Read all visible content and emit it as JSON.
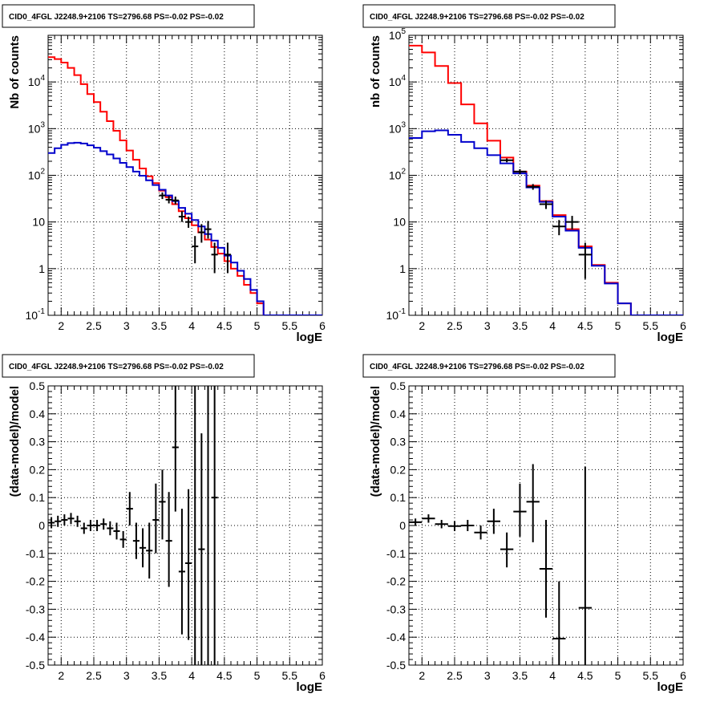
{
  "chart_data": [
    {
      "type": "line",
      "title": "CID0_4FGL J2248.9+2106 TS=2796.68 PS=-0.02 PS=-0.02",
      "xlabel": "logE",
      "ylabel": "Nb of counts",
      "xlim": [
        1.8,
        6.0
      ],
      "ylim": [
        0.1,
        100000
      ],
      "yscale": "log",
      "grid": true,
      "xticks": [
        "2",
        "2.5",
        "3",
        "3.5",
        "4",
        "4.5",
        "5",
        "5.5",
        "6"
      ],
      "yticks": [
        {
          "v": 0.1,
          "base": "10",
          "exp": "-1"
        },
        {
          "v": 1,
          "t": "1"
        },
        {
          "v": 10,
          "t": "10"
        },
        {
          "v": 100,
          "base": "10",
          "exp": "2"
        },
        {
          "v": 1000,
          "base": "10",
          "exp": "3"
        },
        {
          "v": 10000,
          "base": "10",
          "exp": "4"
        }
      ],
      "bin_width": 0.1,
      "series": [
        {
          "color": "#ff0000",
          "style": "step",
          "x": [
            1.8,
            1.9,
            2.0,
            2.1,
            2.2,
            2.3,
            2.4,
            2.5,
            2.6,
            2.7,
            2.8,
            2.9,
            3.0,
            3.1,
            3.2,
            3.3,
            3.4,
            3.5,
            3.6,
            3.7,
            3.8,
            3.9,
            4.0,
            4.1,
            4.2,
            4.3,
            4.4,
            4.5,
            4.6,
            4.7,
            4.8,
            4.9,
            5.0,
            5.1,
            5.2,
            5.3,
            5.4,
            5.5,
            5.6,
            5.7,
            5.8,
            5.9,
            6.0
          ],
          "values": [
            34000,
            31000,
            26000,
            20000,
            14000,
            9000,
            5500,
            3700,
            2300,
            1450,
            900,
            560,
            340,
            215,
            140,
            95,
            68,
            47,
            34,
            24,
            17,
            12,
            8.5,
            6,
            4.2,
            2.9,
            2.1,
            1.45,
            1.0,
            0.7,
            0.45,
            0.3,
            0.18,
            0.1,
            0.1,
            0.1,
            0.1,
            0.1,
            0.1,
            0.1,
            0.1,
            0.1,
            0.1
          ]
        },
        {
          "color": "#0000cc",
          "style": "step",
          "x": [
            1.8,
            1.9,
            2.0,
            2.1,
            2.2,
            2.3,
            2.4,
            2.5,
            2.6,
            2.7,
            2.8,
            2.9,
            3.0,
            3.1,
            3.2,
            3.3,
            3.4,
            3.5,
            3.6,
            3.7,
            3.8,
            3.9,
            4.0,
            4.1,
            4.2,
            4.3,
            4.4,
            4.5,
            4.6,
            4.7,
            4.8,
            4.9,
            5.0,
            5.1,
            5.2,
            5.3,
            5.4,
            5.5,
            5.6,
            5.7,
            5.8,
            5.9,
            6.0
          ],
          "values": [
            300,
            380,
            450,
            490,
            500,
            480,
            440,
            390,
            330,
            280,
            230,
            185,
            150,
            120,
            98,
            78,
            62,
            49,
            37,
            28,
            20,
            15,
            11,
            8,
            5.5,
            4,
            2.8,
            1.9,
            1.35,
            0.9,
            0.6,
            0.35,
            0.2,
            0.1,
            0.1,
            0.1,
            0.1,
            0.1,
            0.1,
            0.1,
            0.1,
            0.1,
            0.1
          ]
        }
      ],
      "points": {
        "x": [
          3.55,
          3.65,
          3.75,
          3.85,
          3.95,
          4.05,
          4.15,
          4.25,
          4.35,
          4.55
        ],
        "y": [
          37,
          30,
          29,
          13,
          10,
          3,
          6,
          7,
          2,
          2
        ],
        "ylow": [
          31,
          25,
          24,
          10,
          7.5,
          1.3,
          3.6,
          4.4,
          0.8,
          0.8
        ],
        "yhigh": [
          43,
          36,
          35,
          17,
          13,
          5,
          9,
          10.5,
          3.6,
          3.6
        ]
      }
    },
    {
      "type": "line",
      "title": "CID0_4FGL J2248.9+2106 TS=2796.68 PS=-0.02 PS=-0.02",
      "xlabel": "logE",
      "ylabel": "nb of counts",
      "xlim": [
        1.8,
        6.0
      ],
      "ylim": [
        0.1,
        100000
      ],
      "yscale": "log",
      "grid": true,
      "xticks": [
        "2",
        "2.5",
        "3",
        "3.5",
        "4",
        "4.5",
        "5",
        "5.5",
        "6"
      ],
      "yticks": [
        {
          "v": 0.1,
          "base": "10",
          "exp": "-1"
        },
        {
          "v": 1,
          "t": "1"
        },
        {
          "v": 10,
          "t": "10"
        },
        {
          "v": 100,
          "base": "10",
          "exp": "2"
        },
        {
          "v": 1000,
          "base": "10",
          "exp": "3"
        },
        {
          "v": 10000,
          "base": "10",
          "exp": "4"
        },
        {
          "v": 100000,
          "base": "10",
          "exp": "5"
        }
      ],
      "bin_width": 0.2,
      "series": [
        {
          "color": "#ff0000",
          "style": "step",
          "x": [
            1.8,
            2.0,
            2.2,
            2.4,
            2.6,
            2.8,
            3.0,
            3.2,
            3.4,
            3.6,
            3.8,
            4.0,
            4.2,
            4.4,
            4.6,
            4.8,
            5.0,
            5.2,
            5.4,
            5.6,
            5.8,
            6.0
          ],
          "values": [
            60000,
            43000,
            22000,
            9500,
            3300,
            1300,
            550,
            240,
            120,
            60,
            28,
            14,
            7,
            3,
            1.2,
            0.5,
            0.18,
            0.1,
            0.1,
            0.1,
            0.1,
            0.1
          ]
        },
        {
          "color": "#0000cc",
          "style": "step",
          "x": [
            1.8,
            2.0,
            2.2,
            2.4,
            2.6,
            2.8,
            3.0,
            3.2,
            3.4,
            3.6,
            3.8,
            4.0,
            4.2,
            4.4,
            4.6,
            4.8,
            5.0,
            5.2,
            5.4,
            5.6,
            5.8,
            6.0
          ],
          "values": [
            630,
            880,
            920,
            740,
            520,
            380,
            270,
            180,
            110,
            55,
            27,
            13,
            6.5,
            2.8,
            1.15,
            0.48,
            0.18,
            0.1,
            0.1,
            0.1,
            0.1,
            0.1
          ]
        }
      ],
      "points": {
        "x": [
          3.3,
          3.5,
          3.7,
          3.9,
          4.1,
          4.3,
          4.5
        ],
        "y": [
          210,
          120,
          57,
          24,
          8,
          10,
          2
        ],
        "ylow": [
          190,
          105,
          49,
          19,
          5.2,
          7,
          0.6
        ],
        "yhigh": [
          230,
          135,
          65,
          29,
          11,
          13.5,
          3.6
        ]
      }
    },
    {
      "type": "scatter",
      "title": "CID0_4FGL J2248.9+2106 TS=2796.68 PS=-0.02 PS=-0.02",
      "xlabel": "logE",
      "ylabel": "(data-model)/model",
      "xlim": [
        1.8,
        6.0
      ],
      "ylim": [
        -0.5,
        0.5
      ],
      "grid": true,
      "xticks": [
        "2",
        "2.5",
        "3",
        "3.5",
        "4",
        "4.5",
        "5",
        "5.5",
        "6"
      ],
      "yticks": [
        "-0.5",
        "-0.4",
        "-0.3",
        "-0.2",
        "-0.1",
        "0",
        "0.1",
        "0.2",
        "0.3",
        "0.4",
        "0.5"
      ],
      "bin_width": 0.1,
      "points": {
        "x": [
          1.85,
          1.95,
          2.05,
          2.15,
          2.25,
          2.35,
          2.45,
          2.55,
          2.65,
          2.75,
          2.85,
          2.95,
          3.05,
          3.15,
          3.25,
          3.35,
          3.45,
          3.55,
          3.65,
          3.75,
          3.85,
          3.95,
          4.05,
          4.15,
          4.25,
          4.35
        ],
        "y": [
          0.01,
          0.015,
          0.02,
          0.025,
          0.015,
          -0.01,
          0.0,
          0.0,
          0.005,
          -0.01,
          -0.02,
          -0.05,
          0.06,
          -0.055,
          -0.08,
          -0.09,
          0.02,
          0.085,
          -0.055,
          0.28,
          -0.165,
          -0.135,
          null,
          -0.085,
          null,
          0.1
        ],
        "ylow": [
          -0.01,
          -0.005,
          0.0,
          0.005,
          -0.005,
          -0.03,
          -0.02,
          -0.02,
          -0.015,
          -0.035,
          -0.05,
          -0.08,
          0.0,
          -0.12,
          -0.15,
          -0.19,
          -0.1,
          -0.05,
          -0.22,
          0.05,
          -0.39,
          -0.41,
          null,
          -0.5,
          null,
          -0.5
        ],
        "yhigh": [
          0.03,
          0.035,
          0.04,
          0.045,
          0.035,
          0.01,
          0.02,
          0.02,
          0.025,
          0.015,
          0.01,
          -0.02,
          0.12,
          0.01,
          -0.01,
          0.01,
          0.15,
          0.2,
          0.12,
          0.5,
          0.06,
          0.13,
          null,
          0.33,
          null,
          0.5
        ]
      }
    },
    {
      "type": "scatter",
      "title": "CID0_4FGL J2248.9+2106 TS=2796.68 PS=-0.02 PS=-0.02",
      "xlabel": "logE",
      "ylabel": "(data-model)/model",
      "xlim": [
        1.8,
        6.0
      ],
      "ylim": [
        -0.5,
        0.5
      ],
      "grid": true,
      "xticks": [
        "2",
        "2.5",
        "3",
        "3.5",
        "4",
        "4.5",
        "5",
        "5.5",
        "6"
      ],
      "yticks": [
        "-0.5",
        "-0.4",
        "-0.3",
        "-0.2",
        "-0.1",
        "0",
        "0.1",
        "0.2",
        "0.3",
        "0.4",
        "0.5"
      ],
      "bin_width": 0.2,
      "points": {
        "x": [
          1.9,
          2.1,
          2.3,
          2.5,
          2.7,
          2.9,
          3.1,
          3.3,
          3.5,
          3.7,
          3.9,
          4.1,
          4.5
        ],
        "y": [
          0.012,
          0.025,
          0.005,
          -0.002,
          0.0,
          -0.025,
          0.015,
          -0.085,
          0.05,
          0.085,
          -0.155,
          -0.405,
          -0.295
        ],
        "ylow": [
          0.0,
          0.01,
          -0.01,
          -0.02,
          -0.02,
          -0.05,
          -0.03,
          -0.15,
          -0.04,
          -0.06,
          -0.33,
          -0.5,
          -0.5
        ],
        "yhigh": [
          0.025,
          0.04,
          0.02,
          0.015,
          0.02,
          0.0,
          0.06,
          -0.025,
          0.15,
          0.22,
          0.02,
          -0.2,
          0.21
        ]
      }
    }
  ]
}
